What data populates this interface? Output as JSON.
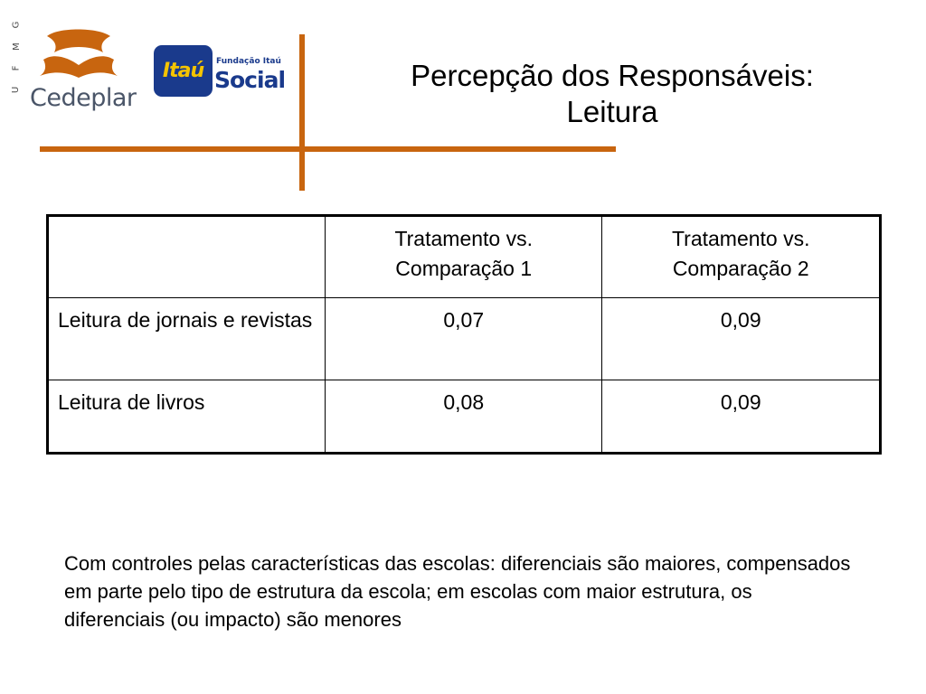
{
  "logos": {
    "ufmg_letters": [
      "U",
      "F",
      "M",
      "G"
    ],
    "cedeplar": "Cedeplar",
    "itau": "Itaú",
    "fundacao": "Fundação Itaú",
    "social": "Social"
  },
  "colors": {
    "accent_orange": "#c8650f",
    "itau_blue": "#1a3a8c",
    "itau_yellow": "#f5c400"
  },
  "title": {
    "line1": "Percepção dos Responsáveis:",
    "line2": "Leitura"
  },
  "table": {
    "headers": [
      "",
      "Tratamento vs. Comparação 1",
      "Tratamento vs. Comparação 2"
    ],
    "rows": [
      {
        "label": "Leitura de jornais e revistas",
        "c1": "0,07",
        "c2": "0,09"
      },
      {
        "label": "Leitura de livros",
        "c1": "0,08",
        "c2": "0,09"
      }
    ]
  },
  "note": "Com controles pelas características das escolas: diferenciais são maiores, compensados em parte pelo tipo de estrutura da escola; em escolas com maior estrutura, os diferenciais (ou impacto) são menores"
}
